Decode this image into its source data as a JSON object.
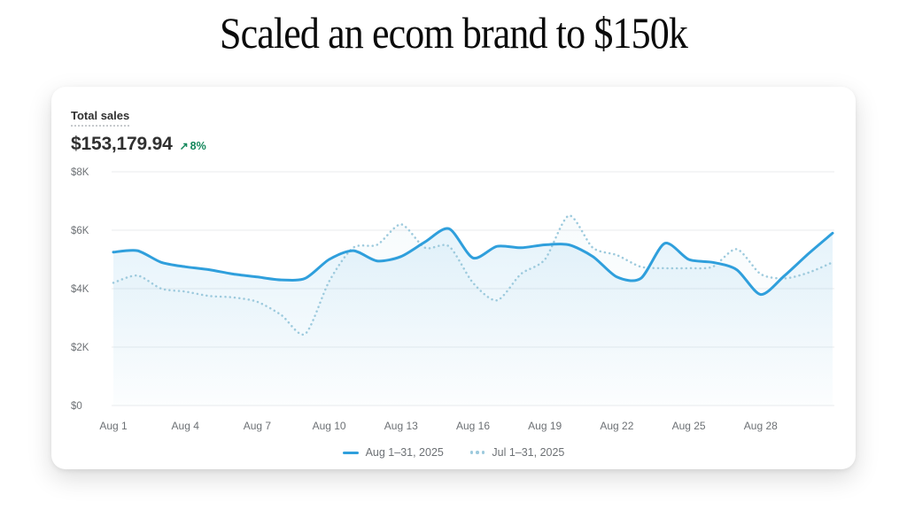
{
  "page": {
    "title": "Scaled an ecom brand to $150k"
  },
  "card": {
    "metric": {
      "label": "Total sales",
      "value": "$153,179.94",
      "delta": "8%",
      "delta_direction": "up",
      "delta_color": "#13875b"
    }
  },
  "chart_data": {
    "type": "line",
    "title": "Total sales",
    "xlabel": "",
    "ylabel": "",
    "x_range": [
      1,
      31
    ],
    "ylim": [
      0,
      8000
    ],
    "grid": true,
    "legend_position": "bottom",
    "y_ticks": [
      {
        "label": "$0",
        "value": 0
      },
      {
        "label": "$2K",
        "value": 2000
      },
      {
        "label": "$4K",
        "value": 4000
      },
      {
        "label": "$6K",
        "value": 6000
      },
      {
        "label": "$8K",
        "value": 8000
      }
    ],
    "x_ticks": [
      {
        "label": "Aug 1",
        "day": 1
      },
      {
        "label": "Aug 4",
        "day": 4
      },
      {
        "label": "Aug 7",
        "day": 7
      },
      {
        "label": "Aug 10",
        "day": 10
      },
      {
        "label": "Aug 13",
        "day": 13
      },
      {
        "label": "Aug 16",
        "day": 16
      },
      {
        "label": "Aug 19",
        "day": 19
      },
      {
        "label": "Aug 22",
        "day": 22
      },
      {
        "label": "Aug 25",
        "day": 25
      },
      {
        "label": "Aug 28",
        "day": 28
      }
    ],
    "series": [
      {
        "name": "Aug 1–31, 2025",
        "style": "solid",
        "color": "#2f9fdc",
        "fill_opacity": 0.16,
        "values": [
          5250,
          5300,
          4900,
          4750,
          4650,
          4500,
          4400,
          4300,
          4350,
          5000,
          5300,
          4950,
          5100,
          5600,
          6050,
          5050,
          5450,
          5400,
          5500,
          5500,
          5100,
          4400,
          4350,
          5550,
          5000,
          4900,
          4650,
          3800,
          4450,
          5200,
          5900
        ]
      },
      {
        "name": "Jul 1–31, 2025",
        "style": "dotted",
        "color": "#9dcadd",
        "fill_opacity": 0.09,
        "values": [
          4200,
          4450,
          4000,
          3900,
          3750,
          3700,
          3550,
          3100,
          2450,
          4250,
          5400,
          5500,
          6200,
          5400,
          5450,
          4200,
          3600,
          4500,
          5000,
          6500,
          5400,
          5150,
          4750,
          4700,
          4700,
          4750,
          5350,
          4500,
          4350,
          4550,
          4900
        ]
      }
    ],
    "axis_text_color": "#6d7175",
    "grid_color": "#e9ebee"
  }
}
